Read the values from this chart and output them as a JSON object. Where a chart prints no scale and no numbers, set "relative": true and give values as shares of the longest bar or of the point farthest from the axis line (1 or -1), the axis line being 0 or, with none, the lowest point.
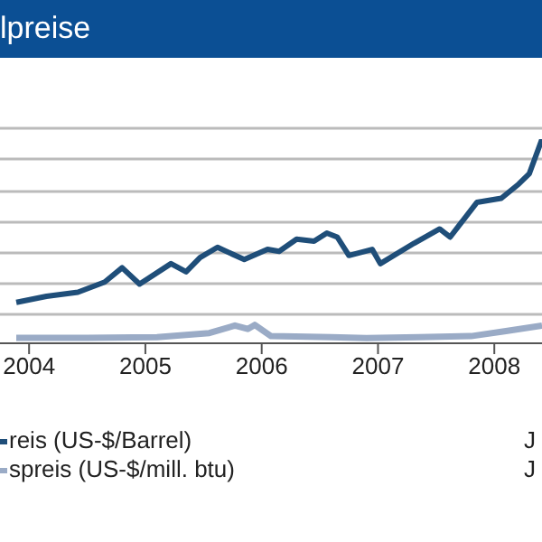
{
  "chart_data": {
    "type": "line",
    "title": "lpreise",
    "relative": true,
    "legend": "bottom left",
    "xlim": [
      2003.75,
      2008.41
    ],
    "xticks": [
      2004,
      2005,
      2006,
      2007,
      2008
    ],
    "annotations": [
      "J",
      "J"
    ],
    "series": [
      {
        "name": "reis (US-$/Barrel)",
        "color": "#1f4e79",
        "x": [
          2003.89,
          2004.15,
          2004.42,
          2004.65,
          2004.8,
          2004.95,
          2005.22,
          2005.35,
          2005.47,
          2005.62,
          2005.85,
          2006.05,
          2006.15,
          2006.3,
          2006.45,
          2006.56,
          2006.65,
          2006.75,
          2006.95,
          2007.02,
          2007.31,
          2007.53,
          2007.62,
          2007.85,
          2008.06,
          2008.21,
          2008.3,
          2008.41
        ],
        "values": [
          0.2,
          0.23,
          0.25,
          0.3,
          0.37,
          0.29,
          0.39,
          0.35,
          0.42,
          0.47,
          0.41,
          0.46,
          0.45,
          0.51,
          0.5,
          0.54,
          0.52,
          0.43,
          0.46,
          0.39,
          0.49,
          0.56,
          0.52,
          0.69,
          0.71,
          0.78,
          0.83,
          1
        ]
      },
      {
        "name": "spreis (US-$/mill. btu)",
        "color": "#9aabc6",
        "x": [
          2003.89,
          2004.5,
          2005.1,
          2005.55,
          2005.77,
          2005.88,
          2005.94,
          2006.08,
          2006.6,
          2006.9,
          2007.35,
          2007.8,
          2008.1,
          2008.41
        ],
        "values": [
          0.026,
          0.026,
          0.03,
          0.05,
          0.087,
          0.07,
          0.09,
          0.035,
          0.03,
          0.025,
          0.03,
          0.035,
          0.06,
          0.087
        ]
      }
    ]
  }
}
